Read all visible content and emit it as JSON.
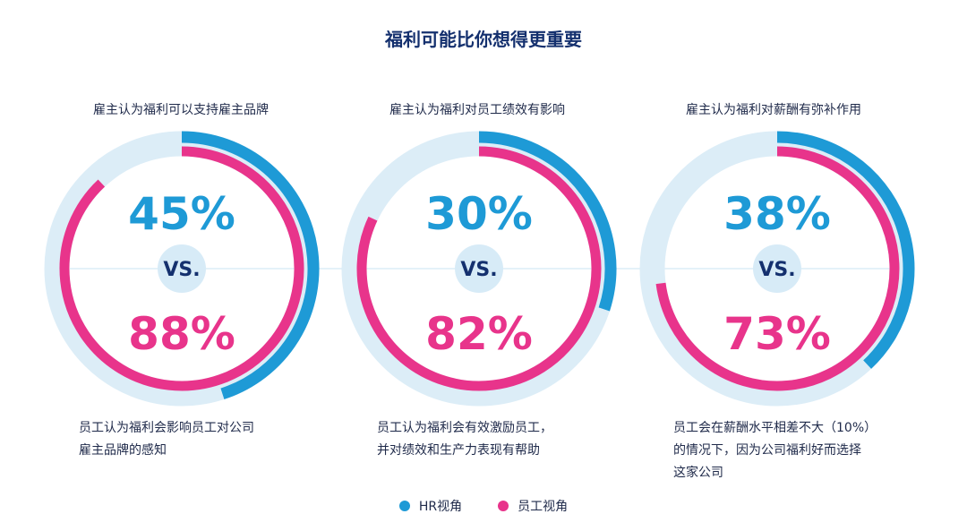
{
  "title": "福利可能比你想得更重要",
  "vs_label": "VS.",
  "legend": [
    {
      "label": "HR视角",
      "color": "#1e9ad6"
    },
    {
      "label": "员工视角",
      "color": "#e8348b"
    }
  ],
  "colors": {
    "hr": "#1e9ad6",
    "employee": "#e8348b",
    "track": "#dcedf7",
    "vs_circle": "#d7ebf7",
    "vs_text": "#14306e"
  },
  "chart_data": [
    {
      "type": "donut",
      "top_label": "雇主认为福利可以支持雇主品牌",
      "bottom_label_lines": [
        "员工认为福利会影响员工对公司",
        "雇主品牌的感知"
      ],
      "series": [
        {
          "name": "HR视角",
          "value": 45,
          "display": "45%"
        },
        {
          "name": "员工视角",
          "value": 88,
          "display": "88%"
        }
      ]
    },
    {
      "type": "donut",
      "top_label": "雇主认为福利对员工绩效有影响",
      "bottom_label_lines": [
        "员工认为福利会有效激励员工，",
        "并对绩效和生产力表现有帮助"
      ],
      "series": [
        {
          "name": "HR视角",
          "value": 30,
          "display": "30%"
        },
        {
          "name": "员工视角",
          "value": 82,
          "display": "82%"
        }
      ]
    },
    {
      "type": "donut",
      "top_label": "雇主认为福利对薪酬有弥补作用",
      "bottom_label_lines": [
        "员工会在薪酬水平相差不大（10%）",
        "的情况下，因为公司福利好而选择",
        "这家公司"
      ],
      "series": [
        {
          "name": "HR视角",
          "value": 38,
          "display": "38%"
        },
        {
          "name": "员工视角",
          "value": 73,
          "display": "73%"
        }
      ]
    }
  ]
}
